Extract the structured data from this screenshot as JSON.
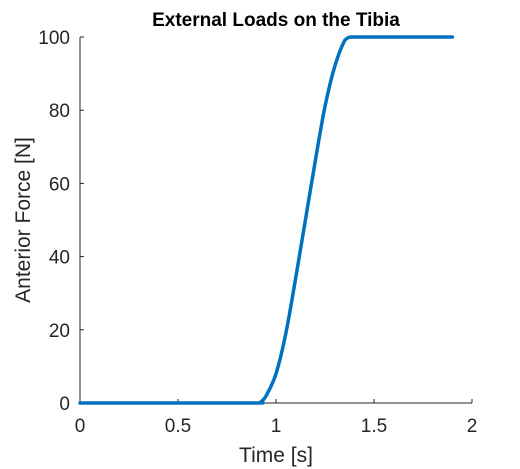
{
  "chart_data": {
    "type": "line",
    "title": "External Loads on the Tibia",
    "xlabel": "Time [s]",
    "ylabel": "Anterior Force [N]",
    "xlim": [
      0,
      2
    ],
    "ylim": [
      0,
      100
    ],
    "xticks": [
      "0",
      "0.5",
      "1",
      "1.5",
      "2"
    ],
    "yticks": [
      "0",
      "20",
      "40",
      "60",
      "80",
      "100"
    ],
    "grid": false,
    "line_color": "#0072BD",
    "series": [
      {
        "x": [
          0,
          0.5,
          0.9,
          0.92,
          0.95,
          1.0,
          1.05,
          1.1,
          1.15,
          1.2,
          1.25,
          1.3,
          1.35,
          1.38,
          1.4,
          1.5,
          1.7,
          1.9
        ],
        "values": [
          0,
          0,
          0,
          0.2,
          2,
          8,
          19,
          34,
          50,
          66,
          81,
          92,
          99,
          100,
          100,
          100,
          100,
          100
        ]
      }
    ]
  }
}
